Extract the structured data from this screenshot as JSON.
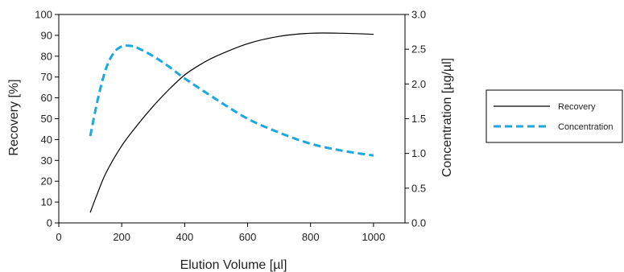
{
  "chart_data": {
    "type": "line",
    "xlabel": "Elution Volume [µl]",
    "ylabel": "Recovery [%]",
    "y2label": "Concentration [µg/µl]",
    "xlim": [
      0,
      1100
    ],
    "ylim": [
      0,
      100
    ],
    "y2lim": [
      0,
      3.0
    ],
    "xticks": [
      "0",
      "200",
      "400",
      "600",
      "800",
      "1000"
    ],
    "yticks": [
      "0",
      "10",
      "20",
      "30",
      "40",
      "50",
      "60",
      "70",
      "80",
      "90",
      "100"
    ],
    "y2ticks": [
      "0.0",
      "0.5",
      "1.0",
      "1.5",
      "2.0",
      "2.5",
      "3.0"
    ],
    "grid": false,
    "legend_position": "right",
    "series": [
      {
        "name": "Recovery",
        "axis": "left",
        "style": "solid",
        "color": "#000000",
        "x": [
          100,
          120,
          150,
          200,
          250,
          300,
          350,
          400,
          450,
          500,
          600,
          700,
          800,
          900,
          1000
        ],
        "y": [
          5,
          13,
          24,
          37,
          47,
          56,
          64,
          71,
          76,
          80,
          86,
          89.5,
          91,
          91,
          90.5
        ]
      },
      {
        "name": "Concentration",
        "axis": "right",
        "style": "dashed",
        "color": "#1ba8e0",
        "x": [
          100,
          125,
          150,
          175,
          200,
          225,
          250,
          300,
          350,
          400,
          500,
          600,
          700,
          800,
          900,
          1000
        ],
        "y": [
          1.25,
          1.8,
          2.22,
          2.45,
          2.54,
          2.55,
          2.52,
          2.4,
          2.25,
          2.08,
          1.78,
          1.5,
          1.3,
          1.14,
          1.04,
          0.97
        ]
      }
    ]
  }
}
